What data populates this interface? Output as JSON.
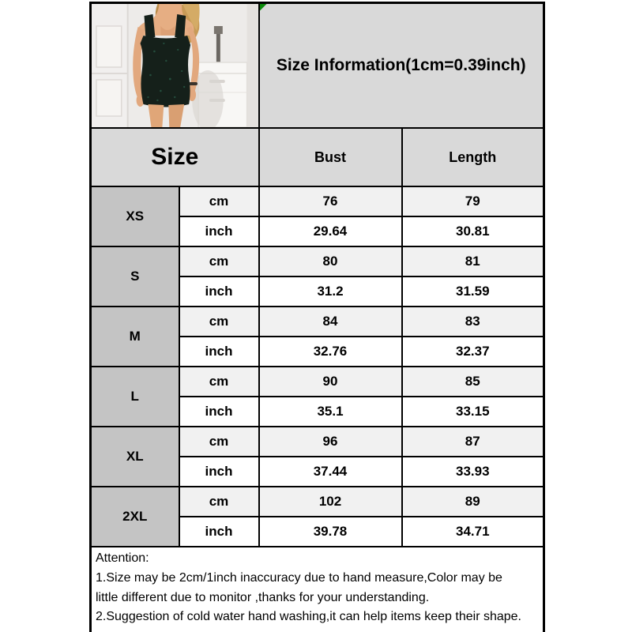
{
  "title": {
    "text": "Size Information(1cm=0.39inch)",
    "marker_color": "#0a8a0a"
  },
  "product_image": {
    "description": "model-in-dark-green-sequin-bodycon-mini-dress",
    "colors": {
      "background": "#edebe9",
      "dress": "#15201a",
      "sequin_highlight": "#2e6b54",
      "hair": "#c79a57",
      "skin": "#e3aa7f",
      "furniture": "#f8f6f4"
    }
  },
  "table": {
    "headers": {
      "size": "Size",
      "bust": "Bust",
      "length": "Length"
    },
    "unit_labels": {
      "cm": "cm",
      "inch": "inch"
    },
    "colors": {
      "header_bg": "#d9d9d9",
      "size_label_bg": "#c4c4c4",
      "cm_row_bg": "#f1f1f1",
      "inch_row_bg": "#ffffff",
      "border": "#000000"
    },
    "rows": [
      {
        "size": "XS",
        "bust_cm": "76",
        "bust_inch": "29.64",
        "length_cm": "79",
        "length_inch": "30.81"
      },
      {
        "size": "S",
        "bust_cm": "80",
        "bust_inch": "31.2",
        "length_cm": "81",
        "length_inch": "31.59"
      },
      {
        "size": "M",
        "bust_cm": "84",
        "bust_inch": "32.76",
        "length_cm": "83",
        "length_inch": "32.37"
      },
      {
        "size": "L",
        "bust_cm": "90",
        "bust_inch": "35.1",
        "length_cm": "85",
        "length_inch": "33.15"
      },
      {
        "size": "XL",
        "bust_cm": "96",
        "bust_inch": "37.44",
        "length_cm": "87",
        "length_inch": "33.93"
      },
      {
        "size": "2XL",
        "bust_cm": "102",
        "bust_inch": "39.78",
        "length_cm": "89",
        "length_inch": "34.71"
      }
    ]
  },
  "notes": {
    "lines": [
      "Attention:",
      "1.Size may be 2cm/1inch inaccuracy due to hand measure,Color may be",
      "little different due to monitor ,thanks for your understanding.",
      "2.Suggestion of cold water hand washing,it can help items keep their shape."
    ]
  }
}
